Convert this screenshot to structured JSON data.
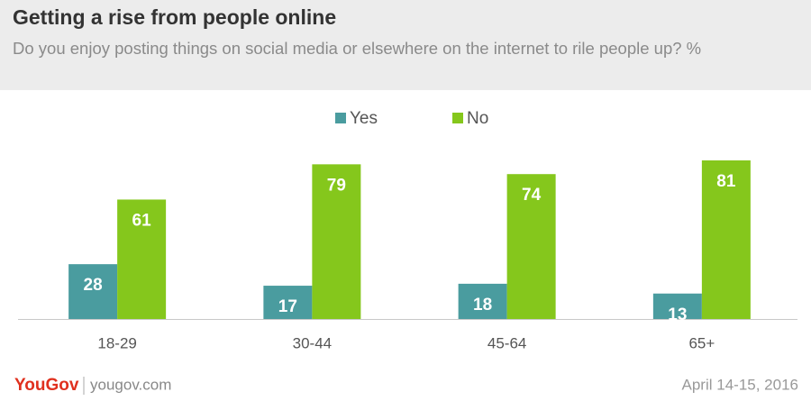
{
  "chart_data": {
    "type": "bar",
    "title": "Getting a rise from people online",
    "subtitle": "Do you enjoy posting things on social media or elsewhere on the internet to rile people up? %",
    "categories": [
      "18-29",
      "30-44",
      "45-64",
      "65+"
    ],
    "series": [
      {
        "name": "Yes",
        "color": "#4a9c9f",
        "values": [
          28,
          17,
          18,
          13
        ]
      },
      {
        "name": "No",
        "color": "#85c71c",
        "values": [
          61,
          79,
          74,
          81
        ]
      }
    ],
    "legend": "top"
  },
  "footer": {
    "brand": "YouGov",
    "url": "yougov.com",
    "date": "April 14-15, 2016"
  }
}
